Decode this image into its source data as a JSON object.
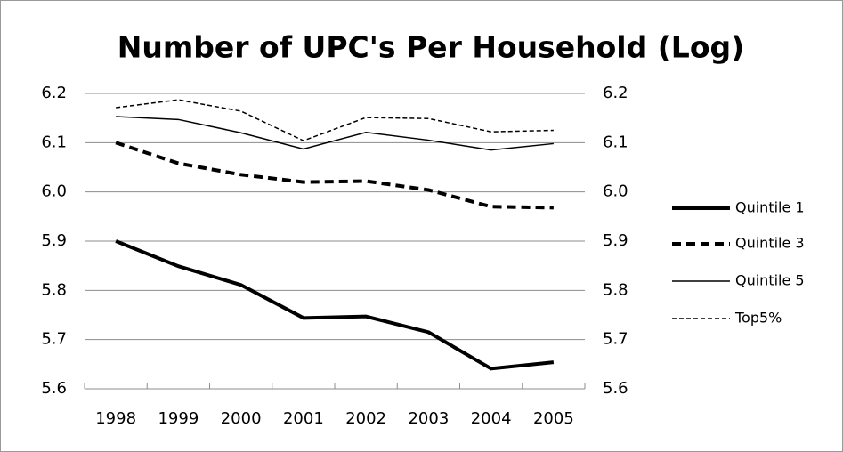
{
  "chart_data": {
    "type": "line",
    "title": "Number of UPC's Per Household (Log)",
    "categories": [
      "1998",
      "1999",
      "2000",
      "2001",
      "2002",
      "2003",
      "2004",
      "2005"
    ],
    "series": [
      {
        "name": "Quintile 1",
        "color": "#000000",
        "line_width": 4,
        "line_style": "solid",
        "values": [
          5.9,
          5.849,
          5.811,
          5.744,
          5.747,
          5.715,
          5.641,
          5.654
        ]
      },
      {
        "name": "Quintile 3",
        "color": "#000000",
        "line_width": 4,
        "line_style": "dashed",
        "values": [
          6.1,
          6.058,
          6.035,
          6.02,
          6.022,
          6.004,
          5.97,
          5.968
        ]
      },
      {
        "name": "Quintile 5",
        "color": "#000000",
        "line_width": 1.5,
        "line_style": "solid",
        "values": [
          6.153,
          6.147,
          6.12,
          6.087,
          6.121,
          6.105,
          6.085,
          6.098
        ]
      },
      {
        "name": "Top5%",
        "color": "#000000",
        "line_width": 1.5,
        "line_style": "dashed",
        "values": [
          6.171,
          6.187,
          6.164,
          6.104,
          6.151,
          6.149,
          6.122,
          6.125
        ]
      }
    ],
    "ylim": [
      5.6,
      6.2
    ],
    "yticks": [
      5.6,
      5.7,
      5.8,
      5.9,
      {
        "value": 6,
        "label": "6.0"
      },
      6.1,
      6.2
    ],
    "y2lim": [
      5.6,
      6.2
    ],
    "y2ticks": [
      5.6,
      5.7,
      5.8,
      5.9,
      {
        "value": 6,
        "label": "6.0"
      },
      6.1,
      6.2
    ],
    "grid": true,
    "legend": "right"
  }
}
